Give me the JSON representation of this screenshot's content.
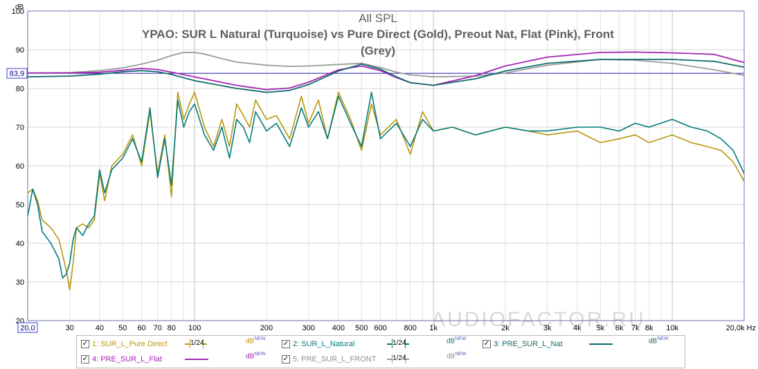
{
  "chart_data": {
    "type": "line",
    "title": "All SPL",
    "subtitle": "YPAO: SUR L Natural (Turquoise) vs Pure Direct (Gold), Preout Nat, Flat (Pink), Front (Grey)",
    "ylabel": "dB",
    "xlim": [
      20,
      20000
    ],
    "ylim": [
      20,
      100
    ],
    "x_scale": "log",
    "y_ticks": [
      "100",
      "90",
      "80",
      "70",
      "60",
      "50",
      "40",
      "30",
      "20"
    ],
    "x_ticks": [
      {
        "f": 30,
        "label": "30"
      },
      {
        "f": 40,
        "label": "40"
      },
      {
        "f": 50,
        "label": "50"
      },
      {
        "f": 60,
        "label": "60"
      },
      {
        "f": 70,
        "label": "70"
      },
      {
        "f": 80,
        "label": "80"
      },
      {
        "f": 100,
        "label": "100"
      },
      {
        "f": 200,
        "label": "200"
      },
      {
        "f": 300,
        "label": "300"
      },
      {
        "f": 400,
        "label": "400"
      },
      {
        "f": 500,
        "label": "500"
      },
      {
        "f": 600,
        "label": "600"
      },
      {
        "f": 800,
        "label": "800"
      },
      {
        "f": 1000,
        "label": "1k"
      },
      {
        "f": 2000,
        "label": "2k"
      },
      {
        "f": 3000,
        "label": "3k"
      },
      {
        "f": 4000,
        "label": "4k"
      },
      {
        "f": 5000,
        "label": "5k"
      },
      {
        "f": 6000,
        "label": "6k"
      },
      {
        "f": 7000,
        "label": "7k"
      },
      {
        "f": 8000,
        "label": "8k"
      },
      {
        "f": 10000,
        "label": "10k"
      }
    ],
    "x_start_label": "20,0",
    "x_end_label": "20,0k Hz",
    "ref_line": {
      "value": 83.9,
      "label": "83,9"
    },
    "grid": true,
    "watermark": "AUDIOFACTOR.RU",
    "series": [
      {
        "name": "1: SUR_L_Pure Direct",
        "color": "#b8960c",
        "width": 1.6,
        "x": [
          20,
          21,
          22,
          23,
          25,
          27,
          28,
          29,
          30,
          31,
          32,
          34,
          36,
          38,
          40,
          42,
          45,
          50,
          55,
          60,
          65,
          70,
          75,
          80,
          85,
          90,
          95,
          100,
          110,
          120,
          130,
          140,
          150,
          160,
          170,
          180,
          200,
          220,
          250,
          280,
          300,
          330,
          360,
          400,
          450,
          500,
          550,
          600,
          700,
          800,
          900,
          1000,
          1200,
          1500,
          2000,
          2500,
          3000,
          4000,
          5000,
          6000,
          7000,
          8000,
          10000,
          12000,
          14000,
          16000,
          18000,
          20000
        ],
        "y": [
          53,
          54,
          51,
          46,
          44,
          41,
          37,
          33,
          28,
          35,
          44,
          45,
          44,
          46,
          58,
          51,
          60,
          63,
          68,
          60,
          74,
          58,
          68,
          52,
          79,
          72,
          76,
          79,
          70,
          65,
          72,
          65,
          76,
          73,
          70,
          77,
          72,
          73,
          67,
          78,
          71,
          77,
          67,
          79,
          72,
          64,
          76,
          68,
          72,
          63,
          74,
          69,
          70,
          68,
          70,
          69,
          68,
          69,
          66,
          67,
          68,
          66,
          68,
          66,
          65,
          64,
          61,
          56
        ]
      },
      {
        "name": "2: SUR_L_Natural",
        "color": "#007a7a",
        "width": 1.6,
        "x": [
          20,
          21,
          22,
          23,
          25,
          27,
          28,
          29,
          30,
          31,
          32,
          34,
          36,
          38,
          40,
          42,
          45,
          50,
          55,
          60,
          65,
          70,
          75,
          80,
          85,
          90,
          95,
          100,
          110,
          120,
          130,
          140,
          150,
          160,
          170,
          180,
          200,
          220,
          250,
          280,
          300,
          330,
          360,
          400,
          450,
          500,
          550,
          600,
          700,
          800,
          900,
          1000,
          1200,
          1500,
          2000,
          2500,
          3000,
          4000,
          5000,
          6000,
          7000,
          8000,
          10000,
          12000,
          14000,
          16000,
          18000,
          20000
        ],
        "y": [
          47,
          54,
          50,
          43,
          40,
          36,
          31,
          32,
          35,
          41,
          44,
          42,
          45,
          47,
          59,
          53,
          59,
          62,
          67,
          61,
          75,
          57,
          67,
          55,
          77,
          70,
          74,
          76,
          68,
          64,
          70,
          62,
          72,
          70,
          66,
          74,
          69,
          71,
          65,
          75,
          70,
          74,
          67,
          78,
          71,
          65,
          79,
          67,
          71,
          65,
          72,
          69,
          70,
          68,
          70,
          69,
          69,
          70,
          70,
          69,
          71,
          70,
          72,
          70,
          69,
          67,
          64,
          58
        ]
      },
      {
        "name": "3: PRE_SUR_L_Nat",
        "color": "#0f6b6b",
        "width": 1.8,
        "x": [
          20,
          30,
          40,
          50,
          60,
          70,
          80,
          100,
          150,
          200,
          250,
          300,
          400,
          500,
          600,
          700,
          800,
          1000,
          1500,
          2000,
          3000,
          5000,
          7000,
          10000,
          15000,
          20000
        ],
        "y": [
          83,
          83.2,
          83.7,
          84.3,
          84.6,
          84.3,
          83.6,
          82,
          80,
          79,
          79.5,
          81,
          84.5,
          86.3,
          85,
          83,
          81.5,
          80.8,
          82.5,
          84.5,
          86.5,
          87.5,
          87.5,
          87.5,
          87,
          85.5
        ]
      },
      {
        "name": "4: PRE_SUR_L_Flat",
        "color": "#a323b5",
        "width": 1.8,
        "x": [
          20,
          30,
          40,
          50,
          60,
          70,
          80,
          100,
          150,
          200,
          250,
          300,
          400,
          500,
          600,
          700,
          800,
          1000,
          1500,
          2000,
          3000,
          5000,
          7000,
          10000,
          15000,
          20000
        ],
        "y": [
          84,
          84,
          84.2,
          84.7,
          85.2,
          84.9,
          84.2,
          83,
          80.8,
          79.7,
          80.1,
          81.6,
          84.8,
          85.8,
          84.6,
          82.8,
          81.5,
          80.8,
          83.3,
          85.8,
          88.1,
          89.3,
          89.4,
          89.2,
          88.8,
          86.7
        ]
      },
      {
        "name": "5: PRE_SUR_L_FRONT",
        "color": "#9a9a9a",
        "width": 1.8,
        "x": [
          20,
          30,
          40,
          50,
          60,
          70,
          80,
          90,
          100,
          110,
          130,
          150,
          200,
          250,
          300,
          400,
          500,
          600,
          700,
          800,
          1000,
          1500,
          2000,
          3000,
          5000,
          7000,
          10000,
          15000,
          20000
        ],
        "y": [
          84,
          84.1,
          84.6,
          85.3,
          86.3,
          87.3,
          88.5,
          89.3,
          89.3,
          88.9,
          87.7,
          86.8,
          86,
          85.7,
          85.8,
          86.2,
          86.5,
          85.4,
          84.2,
          83.5,
          83,
          83.2,
          84,
          86,
          87.5,
          87.3,
          86.5,
          84.8,
          83.4
        ]
      }
    ]
  },
  "legend": {
    "items": [
      {
        "name": "1: SUR_L_Pure Direct",
        "smoothing": "1/24",
        "unit": "dB",
        "unit_sup": "NEW",
        "checked": "✓"
      },
      {
        "name": "2: SUR_L_Natural",
        "smoothing": "1/24",
        "unit": "dB",
        "unit_sup": "NEW",
        "checked": "✓"
      },
      {
        "name": "3: PRE_SUR_L_Nat",
        "unit": "dB",
        "unit_sup": "NEW",
        "checked": "✓"
      },
      {
        "name": "4: PRE_SUR_L_Flat",
        "unit": "dB",
        "unit_sup": "NEW",
        "checked": "✓"
      },
      {
        "name": "5: PRE_SUR_L_FRONT",
        "smoothing": "1/24",
        "unit": "dB",
        "unit_sup": "NEW",
        "checked": "✓"
      }
    ]
  }
}
